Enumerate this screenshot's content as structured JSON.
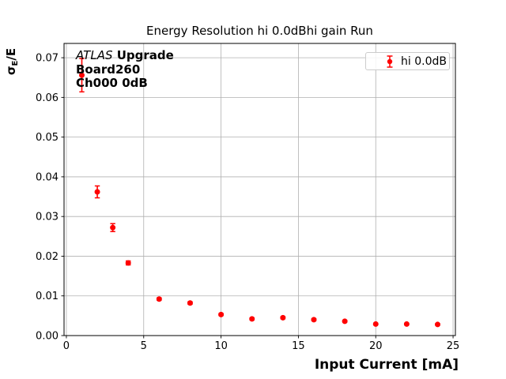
{
  "chart_data": {
    "type": "scatter",
    "title": "Energy Resolution hi 0.0dBhi gain Run",
    "xlabel": "Input Current [mA]",
    "ylabel": "σE/E",
    "ylabel_parts": {
      "sigma": "σ",
      "sub": "E",
      "rest": "/E"
    },
    "series": [
      {
        "name": "hi 0.0dB",
        "color": "#ff0000",
        "marker": "o",
        "x": [
          1,
          2,
          3,
          4,
          6,
          8,
          10,
          12,
          14,
          16,
          18,
          20,
          22,
          24
        ],
        "y": [
          0.0656,
          0.0362,
          0.0272,
          0.0183,
          0.0092,
          0.0082,
          0.0053,
          0.0042,
          0.0045,
          0.004,
          0.0036,
          0.0029,
          0.0029,
          0.0028
        ],
        "yerr": [
          0.0042,
          0.0015,
          0.001,
          0.0005,
          0.0003,
          0.0003,
          0.00025,
          0.00025,
          0.00025,
          0.00025,
          0.0002,
          0.0002,
          0.0002,
          0.0002
        ]
      }
    ],
    "xlim": [
      -0.15,
      25.15
    ],
    "ylim": [
      0,
      0.0736
    ],
    "xticks": {
      "values": [
        0,
        5,
        10,
        15,
        20,
        25
      ],
      "labels": [
        "0",
        "5",
        "10",
        "15",
        "20",
        "25"
      ]
    },
    "yticks": {
      "values": [
        0,
        0.01,
        0.02,
        0.03,
        0.04,
        0.05,
        0.06,
        0.07
      ],
      "labels": [
        "0.00",
        "0.01",
        "0.02",
        "0.03",
        "0.04",
        "0.05",
        "0.06",
        "0.07"
      ]
    },
    "grid": true,
    "grid_color": "#b0b0b0",
    "legend": {
      "position": "upper right",
      "label": "hi 0.0dB"
    },
    "annotation": {
      "line1_italic": "ATLAS",
      "line1_bold": " Upgrade",
      "line2": "Board260",
      "line3": "Ch000 0dB"
    }
  }
}
